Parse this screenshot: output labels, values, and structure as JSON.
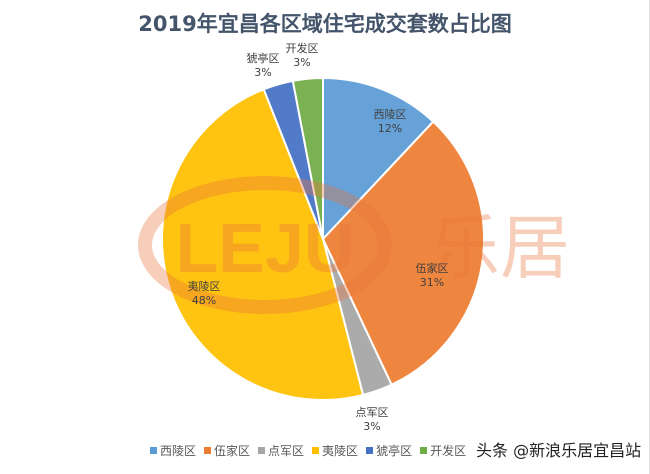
{
  "chart_data": {
    "type": "pie",
    "title": "2019年宜昌各区域住宅成交套数占比图",
    "categories": [
      "西陵区",
      "伍家区",
      "点军区",
      "夷陵区",
      "猇亭区",
      "开发区"
    ],
    "values": [
      12,
      31,
      3,
      48,
      3,
      3
    ],
    "data_labels": [
      "12%",
      "31%",
      "3%",
      "48%",
      "3%",
      "3%"
    ],
    "colors": [
      "#5B9BD5",
      "#ED7D31",
      "#A5A5A5",
      "#FFC000",
      "#4472C4",
      "#70AD47"
    ],
    "start_angle": "12 o'clock, clockwise",
    "legend_position": "bottom"
  },
  "watermark": {
    "logo": "LEJU 乐居",
    "text": "头条 @新浪乐居宜昌站"
  }
}
